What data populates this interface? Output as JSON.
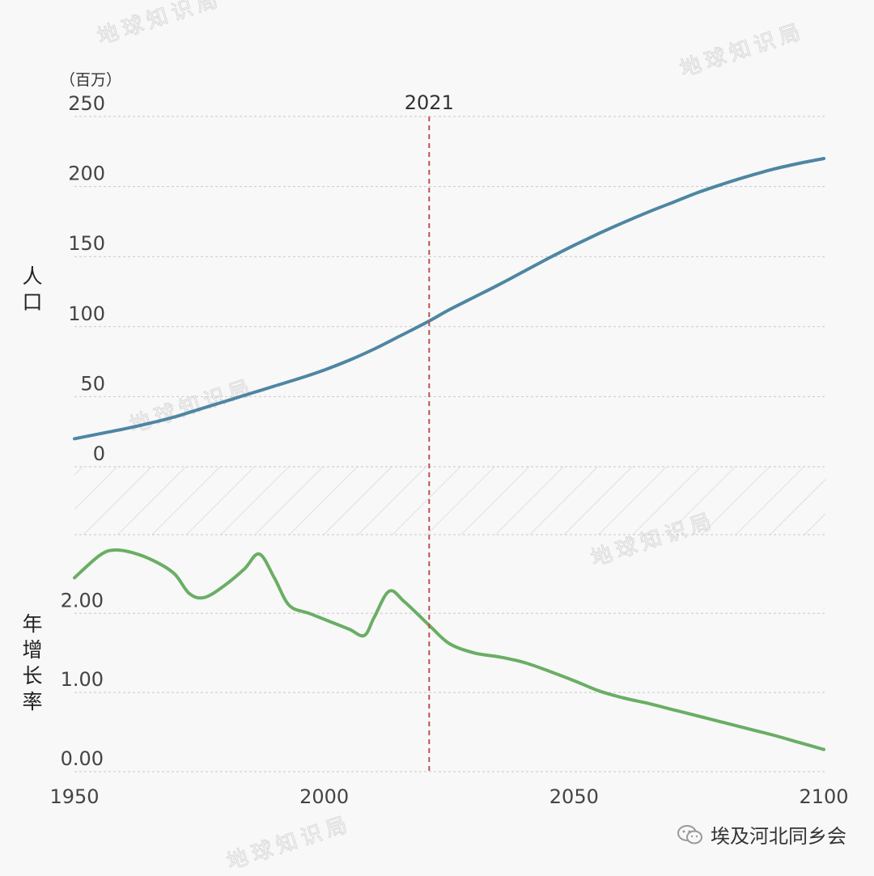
{
  "source_label": "埃及河北同乡会",
  "watermark_text": "地球知识局",
  "colors": {
    "population": "#4e86a3",
    "growth": "#6aae64",
    "marker": "#c0504d",
    "grid": "#c8c8c8",
    "hatch": "#c8c8c8"
  },
  "chart_data": [
    {
      "type": "line",
      "unit_label": "（百万）",
      "ylabel": "人\n口",
      "ylim": [
        0,
        250
      ],
      "y_ticks": [
        "0",
        "50",
        "100",
        "150",
        "200",
        "250"
      ],
      "xlim": [
        1950,
        2100
      ],
      "grid": true,
      "vertical_marker": {
        "x": 2021,
        "label": "2021"
      },
      "series": [
        {
          "color": "#4e86a3",
          "x": [
            1950,
            1955,
            1960,
            1965,
            1970,
            1975,
            1980,
            1985,
            1990,
            1995,
            2000,
            2005,
            2010,
            2015,
            2021,
            2025,
            2030,
            2035,
            2040,
            2045,
            2050,
            2055,
            2060,
            2065,
            2070,
            2075,
            2080,
            2085,
            2090,
            2095,
            2100
          ],
          "values": [
            20,
            23.5,
            27,
            31,
            35.5,
            41,
            46.5,
            52,
            57.5,
            63,
            69,
            76,
            84,
            93,
            104,
            112,
            121,
            130,
            139.5,
            149,
            158,
            166.5,
            174.5,
            182,
            189,
            196,
            202,
            207.5,
            212.5,
            216.5,
            220
          ]
        }
      ]
    },
    {
      "type": "line",
      "ylabel": "年\n增\n长\n率",
      "ylim": [
        0,
        2.8
      ],
      "y_ticks": [
        "0.00",
        "1.00",
        "2.00"
      ],
      "xlim": [
        1950,
        2100
      ],
      "x_ticks": [
        "1950",
        "2000",
        "2050",
        "2100"
      ],
      "grid": true,
      "vertical_marker": {
        "x": 2021,
        "label": "2021"
      },
      "series": [
        {
          "color": "#6aae64",
          "x": [
            1950,
            1955,
            1958,
            1962,
            1966,
            1970,
            1973,
            1976,
            1980,
            1984,
            1987,
            1990,
            1993,
            1997,
            2001,
            2005,
            2008,
            2010,
            2013,
            2016,
            2021,
            2025,
            2030,
            2035,
            2040,
            2045,
            2050,
            2055,
            2060,
            2065,
            2070,
            2075,
            2080,
            2085,
            2090,
            2095,
            2100
          ],
          "values": [
            2.45,
            2.73,
            2.8,
            2.76,
            2.66,
            2.5,
            2.25,
            2.2,
            2.35,
            2.56,
            2.75,
            2.45,
            2.1,
            2.0,
            1.9,
            1.8,
            1.72,
            1.95,
            2.28,
            2.15,
            1.85,
            1.62,
            1.5,
            1.45,
            1.38,
            1.27,
            1.15,
            1.02,
            0.93,
            0.86,
            0.78,
            0.7,
            0.62,
            0.54,
            0.46,
            0.37,
            0.28
          ]
        }
      ]
    }
  ]
}
